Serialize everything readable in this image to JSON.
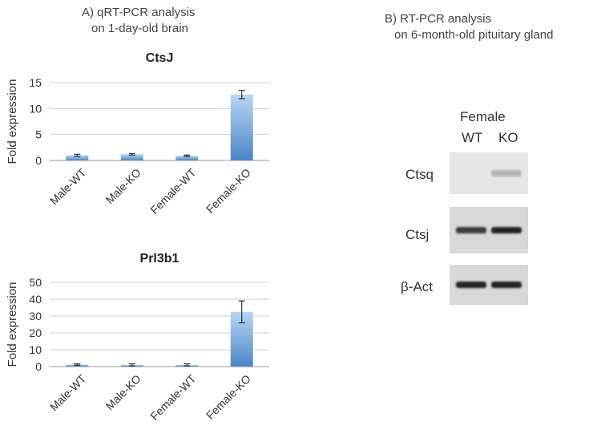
{
  "panel_a": {
    "title_line1": "A) qRT-PCR analysis",
    "title_line2": "on 1-day-old brain"
  },
  "panel_b": {
    "title_line1": "B) RT-PCR analysis",
    "title_line2": "on 6-month-old pituitary gland",
    "group_label": "Female",
    "lane_labels": [
      "WT",
      "KO"
    ],
    "bands": [
      {
        "gene": "Ctsq",
        "wt_intensity": 0.0,
        "ko_intensity": 0.25
      },
      {
        "gene": "Ctsj",
        "wt_intensity": 0.85,
        "ko_intensity": 1.0
      },
      {
        "gene": "β-Act",
        "wt_intensity": 1.0,
        "ko_intensity": 1.0
      }
    ]
  },
  "colors": {
    "bar": "#7fb2e8",
    "bar_dark": "#4a86c8",
    "grid": "#d0d0d0",
    "gel_bg": "#e6e6e6",
    "gel_band": "#222222"
  },
  "chart_data": [
    {
      "type": "bar",
      "title": "CtsJ",
      "ylabel": "Fold expression",
      "categories": [
        "Male-WT",
        "Male-KO",
        "Female-WT",
        "Female-KO"
      ],
      "values": [
        1.0,
        1.2,
        0.9,
        12.7
      ],
      "errors": [
        0.2,
        0.15,
        0.15,
        0.8
      ],
      "ylim": [
        0,
        15
      ],
      "yticks": [
        0,
        5,
        10,
        15
      ],
      "grid": true
    },
    {
      "type": "bar",
      "title": "Prl3b1",
      "ylabel": "Fold expression",
      "categories": [
        "Male-WT",
        "Male-KO",
        "Female-WT",
        "Female-KO"
      ],
      "values": [
        1.2,
        1.0,
        1.0,
        32.5
      ],
      "errors": [
        0.4,
        0.6,
        0.6,
        6.5
      ],
      "ylim": [
        0,
        50
      ],
      "yticks": [
        0,
        10,
        20,
        30,
        40,
        50
      ],
      "grid": true
    }
  ]
}
